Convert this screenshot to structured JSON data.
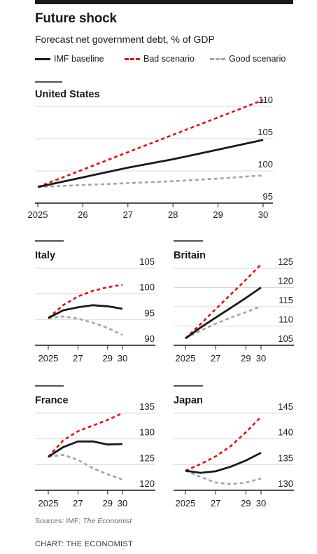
{
  "header": {
    "title": "Future shock",
    "subtitle": "Forecast net government debt, % of GDP"
  },
  "legend": {
    "baseline": "IMF baseline",
    "bad": "Bad scenario",
    "good": "Good scenario"
  },
  "footer": {
    "source_prefix": "Sources: IMF; ",
    "source_italic": "The Economist",
    "credit": "CHART: THE ECONOMIST"
  },
  "colors": {
    "baseline": "#1a1a1a",
    "bad": "#e3120b",
    "good": "#a8a49c"
  },
  "chart_data": [
    {
      "type": "line",
      "title": "United States",
      "x": [
        2025,
        2026,
        2027,
        2028,
        2029,
        2030
      ],
      "xtick_labels": [
        "2025",
        "26",
        "27",
        "28",
        "29",
        "30"
      ],
      "ylim": [
        95,
        110
      ],
      "yticks": [
        95,
        100,
        105,
        110
      ],
      "series": [
        {
          "name": "IMF baseline",
          "values": [
            97.5,
            99.0,
            100.5,
            101.8,
            103.3,
            104.8
          ]
        },
        {
          "name": "Bad scenario",
          "values": [
            97.5,
            100.2,
            102.9,
            105.6,
            108.3,
            111.0
          ]
        },
        {
          "name": "Good scenario",
          "values": [
            97.5,
            97.8,
            98.1,
            98.4,
            98.8,
            99.3
          ]
        }
      ]
    },
    {
      "type": "line",
      "title": "Italy",
      "x": [
        2025,
        2026,
        2027,
        2028,
        2029,
        2030
      ],
      "xtick_labels": [
        "2025",
        "27",
        "29",
        "30"
      ],
      "xtick_values": [
        2025,
        2027,
        2029,
        2030
      ],
      "ylim": [
        90,
        105
      ],
      "yticks": [
        90,
        95,
        100,
        105
      ],
      "series": [
        {
          "name": "IMF baseline",
          "values": [
            95.3,
            96.8,
            97.4,
            97.8,
            97.6,
            97.1
          ]
        },
        {
          "name": "Bad scenario",
          "values": [
            95.3,
            97.8,
            99.5,
            100.6,
            101.3,
            101.8
          ]
        },
        {
          "name": "Good scenario",
          "values": [
            95.3,
            95.6,
            95.2,
            94.4,
            93.4,
            92.0
          ]
        }
      ]
    },
    {
      "type": "line",
      "title": "Britain",
      "x": [
        2025,
        2026,
        2027,
        2028,
        2029,
        2030
      ],
      "xtick_labels": [
        "2025",
        "27",
        "29",
        "30"
      ],
      "xtick_values": [
        2025,
        2027,
        2029,
        2030
      ],
      "ylim": [
        105,
        125
      ],
      "yticks": [
        105,
        110,
        115,
        120,
        125
      ],
      "series": [
        {
          "name": "IMF baseline",
          "values": [
            106.8,
            109.6,
            112.2,
            114.7,
            117.3,
            120.0
          ]
        },
        {
          "name": "Bad scenario",
          "values": [
            106.8,
            110.5,
            114.4,
            118.2,
            122.0,
            126.0
          ]
        },
        {
          "name": "Good scenario",
          "values": [
            106.8,
            108.8,
            110.6,
            112.2,
            113.6,
            115.1
          ]
        }
      ]
    },
    {
      "type": "line",
      "title": "France",
      "x": [
        2025,
        2026,
        2027,
        2028,
        2029,
        2030
      ],
      "xtick_labels": [
        "2025",
        "27",
        "29",
        "30"
      ],
      "xtick_values": [
        2025,
        2027,
        2029,
        2030
      ],
      "ylim": [
        120,
        135
      ],
      "yticks": [
        120,
        125,
        130,
        135
      ],
      "series": [
        {
          "name": "IMF baseline",
          "values": [
            126.5,
            128.4,
            129.5,
            129.5,
            128.9,
            129.0
          ]
        },
        {
          "name": "Bad scenario",
          "values": [
            126.5,
            129.7,
            131.5,
            132.6,
            133.7,
            135.0
          ]
        },
        {
          "name": "Good scenario",
          "values": [
            126.5,
            126.9,
            125.9,
            124.3,
            123.1,
            122.1
          ]
        }
      ]
    },
    {
      "type": "line",
      "title": "Japan",
      "x": [
        2025,
        2026,
        2027,
        2028,
        2029,
        2030
      ],
      "xtick_labels": [
        "2025",
        "27",
        "29",
        "30"
      ],
      "xtick_values": [
        2025,
        2027,
        2029,
        2030
      ],
      "ylim": [
        130,
        145
      ],
      "yticks": [
        130,
        135,
        140,
        145
      ],
      "series": [
        {
          "name": "IMF baseline",
          "values": [
            133.8,
            133.4,
            133.7,
            134.6,
            135.8,
            137.3
          ]
        },
        {
          "name": "Bad scenario",
          "values": [
            133.8,
            135.1,
            136.6,
            138.6,
            141.3,
            144.3
          ]
        },
        {
          "name": "Good scenario",
          "values": [
            133.8,
            132.6,
            131.5,
            131.2,
            131.5,
            132.3
          ]
        }
      ]
    }
  ]
}
